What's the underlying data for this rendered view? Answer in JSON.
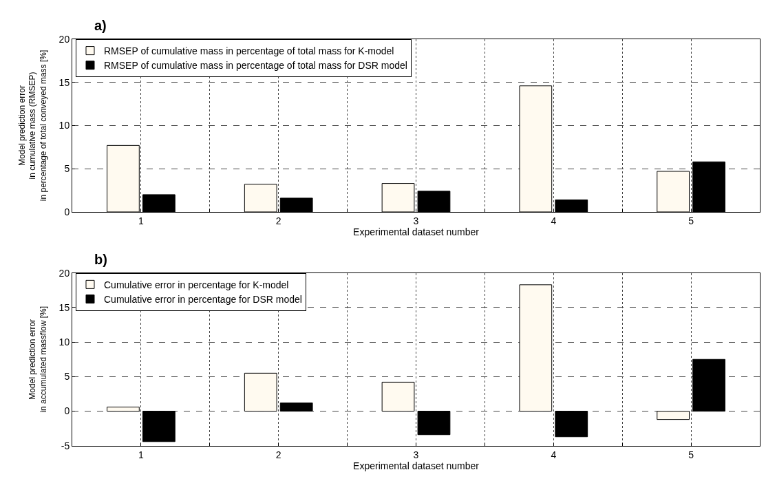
{
  "chart_data": [
    {
      "type": "bar",
      "title": "a)",
      "xlabel": "Experimental dataset number",
      "ylabel": "Model prediction error\nin cumulative mass (RMSEP)\nin percentage of total conveyed mass [%]",
      "x": [
        1,
        2,
        3,
        4,
        5
      ],
      "series": [
        {
          "name": "RMSEP of cumulative mass in percentage of total mass for K-model",
          "color": "#fffaf0",
          "values": [
            7.7,
            3.2,
            3.3,
            14.6,
            4.7
          ]
        },
        {
          "name": "RMSEP of cumulative mass in percentage of total mass for DSR model",
          "color": "#000000",
          "values": [
            2.0,
            1.6,
            2.4,
            1.4,
            5.8
          ]
        }
      ],
      "xlim": [
        0.5,
        5.5
      ],
      "xticks": [
        1,
        {
          "value": 1.5,
          "label": null
        },
        2,
        {
          "value": 2.5,
          "label": null
        },
        3,
        {
          "value": 3.5,
          "label": null
        },
        4,
        {
          "value": 4.5,
          "label": null
        },
        5
      ],
      "ylim": [
        0,
        20
      ],
      "yticks": [
        0,
        5,
        10,
        15,
        20
      ],
      "grid": true,
      "legend": "top left"
    },
    {
      "type": "bar",
      "title": "b)",
      "xlabel": "Experimental dataset number",
      "ylabel": "Model prediction error\nin accumulated massflow [%]",
      "x": [
        1,
        2,
        3,
        4,
        5
      ],
      "series": [
        {
          "name": "Cumulative error in percentage for K-model",
          "color": "#fffaf0",
          "values": [
            0.6,
            5.5,
            4.2,
            18.3,
            -1.2
          ]
        },
        {
          "name": "Cumulative error in percentage for DSR model",
          "color": "#000000",
          "values": [
            -4.4,
            1.2,
            -3.4,
            -3.7,
            7.5
          ]
        }
      ],
      "xlim": [
        0.5,
        5.5
      ],
      "xticks": [
        1,
        {
          "value": 1.5,
          "label": null
        },
        2,
        {
          "value": 2.5,
          "label": null
        },
        3,
        {
          "value": 3.5,
          "label": null
        },
        4,
        {
          "value": 4.5,
          "label": null
        },
        5
      ],
      "ylim": [
        -5,
        20
      ],
      "yticks": [
        -5,
        0,
        5,
        10,
        15,
        20
      ],
      "grid": true,
      "legend": "top left"
    }
  ]
}
